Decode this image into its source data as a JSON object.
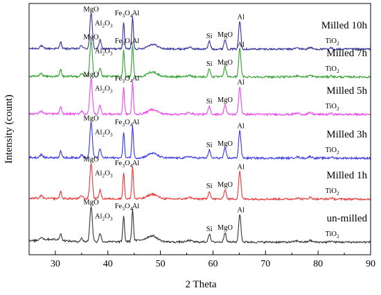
{
  "chart_data": {
    "type": "line",
    "xlabel": "2 Theta",
    "ylabel": "Intensity (count)",
    "xlim": [
      25,
      90
    ],
    "x_ticks": [
      30,
      40,
      50,
      60,
      70,
      80,
      90
    ],
    "y_tick_labels": "none",
    "grid": false,
    "legend": "series labels placed at right end of each trace",
    "series": [
      {
        "name": "Milled 10h",
        "color": "#2e2e9e"
      },
      {
        "name": "Milled 7h",
        "color": "#2ca02c"
      },
      {
        "name": "Milled 5h",
        "color": "#ee44ee"
      },
      {
        "name": "Milled 3h",
        "color": "#3333ee"
      },
      {
        "name": "Milled 1h",
        "color": "#ee3333"
      },
      {
        "name": "un-milled",
        "color": "#333333"
      }
    ],
    "peaks": [
      {
        "label": "MgO",
        "x": 36.8,
        "height": 0.92
      },
      {
        "label": "Al2O3",
        "x": 38.5,
        "height": 0.22
      },
      {
        "label": "Fe3O4",
        "x": 43.0,
        "height": 0.68
      },
      {
        "label": "Al",
        "x": 44.7,
        "height": 0.82
      },
      {
        "label": "Si",
        "x": 59.3,
        "height": 0.2
      },
      {
        "label": "MgO",
        "x": 62.3,
        "height": 0.25
      },
      {
        "label": "Al",
        "x": 65.1,
        "height": 0.72
      },
      {
        "label": "TiO2",
        "x": 82.5,
        "height": 0.03
      }
    ],
    "peak_labels": {
      "MgO": "MgO",
      "Al2O3": {
        "base": "Al",
        "sub1": "2",
        "mid": "O",
        "sub2": "3"
      },
      "Fe3O4": {
        "base": "Fe",
        "sub1": "3",
        "mid": "O",
        "sub2": "4"
      },
      "Al": "Al",
      "Si": "Si",
      "TiO2": {
        "base": "TiO",
        "sub1": "2"
      }
    }
  }
}
